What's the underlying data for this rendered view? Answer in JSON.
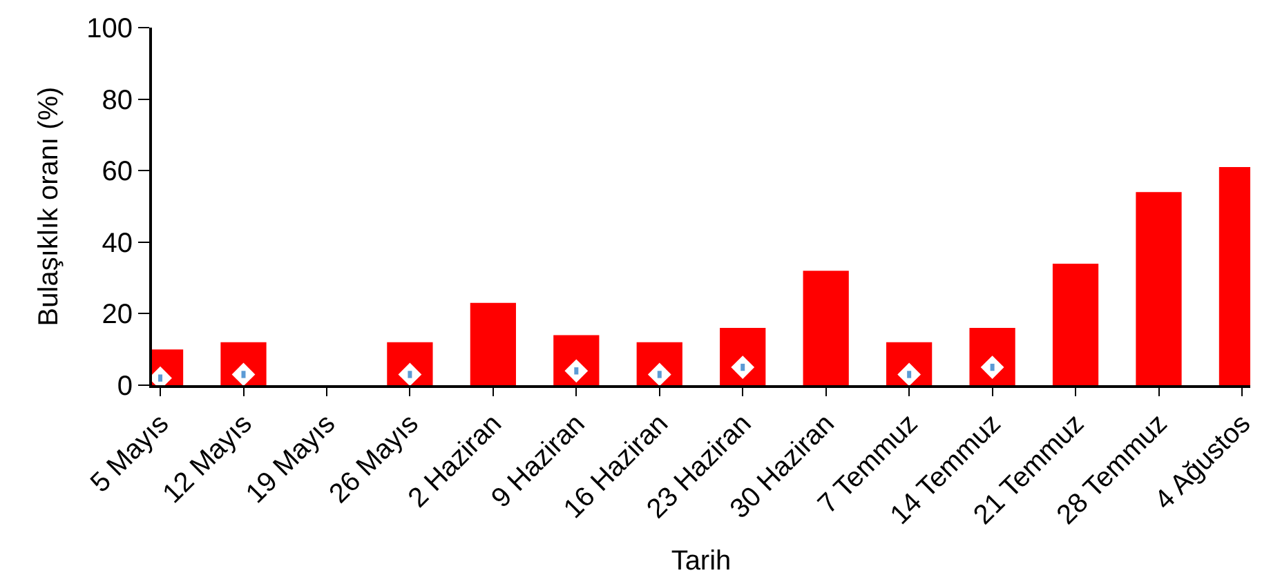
{
  "chart_data": {
    "type": "bar",
    "xlabel": "Tarih",
    "ylabel": "Bulaşıklık oranı (%)",
    "categories": [
      "5 Mayıs",
      "12 Mayıs",
      "19 Mayıs",
      "26 Mayıs",
      "2 Haziran",
      "9 Haziran",
      "16 Haziran",
      "23 Haziran",
      "30 Haziran",
      "7 Temmuz",
      "14 Temmuz",
      "21 Temmuz",
      "28 Temmuz",
      "4 Ağustos"
    ],
    "series": [
      {
        "color": "#ff0000",
        "values": [
          10,
          12,
          0,
          12,
          23,
          14,
          12,
          16,
          32,
          12,
          16,
          34,
          54,
          61
        ]
      },
      {
        "type": "scatter",
        "color": "#ffffff",
        "marker": "diamond",
        "values": [
          2,
          3,
          null,
          3,
          null,
          4,
          3,
          5,
          null,
          3,
          5,
          null,
          null,
          null
        ],
        "errors": [
          1,
          1,
          null,
          1,
          null,
          1,
          1,
          1,
          null,
          1,
          1,
          null,
          null,
          null
        ]
      }
    ],
    "ylim": [
      0,
      100
    ],
    "yticks": [
      0,
      20,
      40,
      60,
      80,
      100
    ]
  }
}
